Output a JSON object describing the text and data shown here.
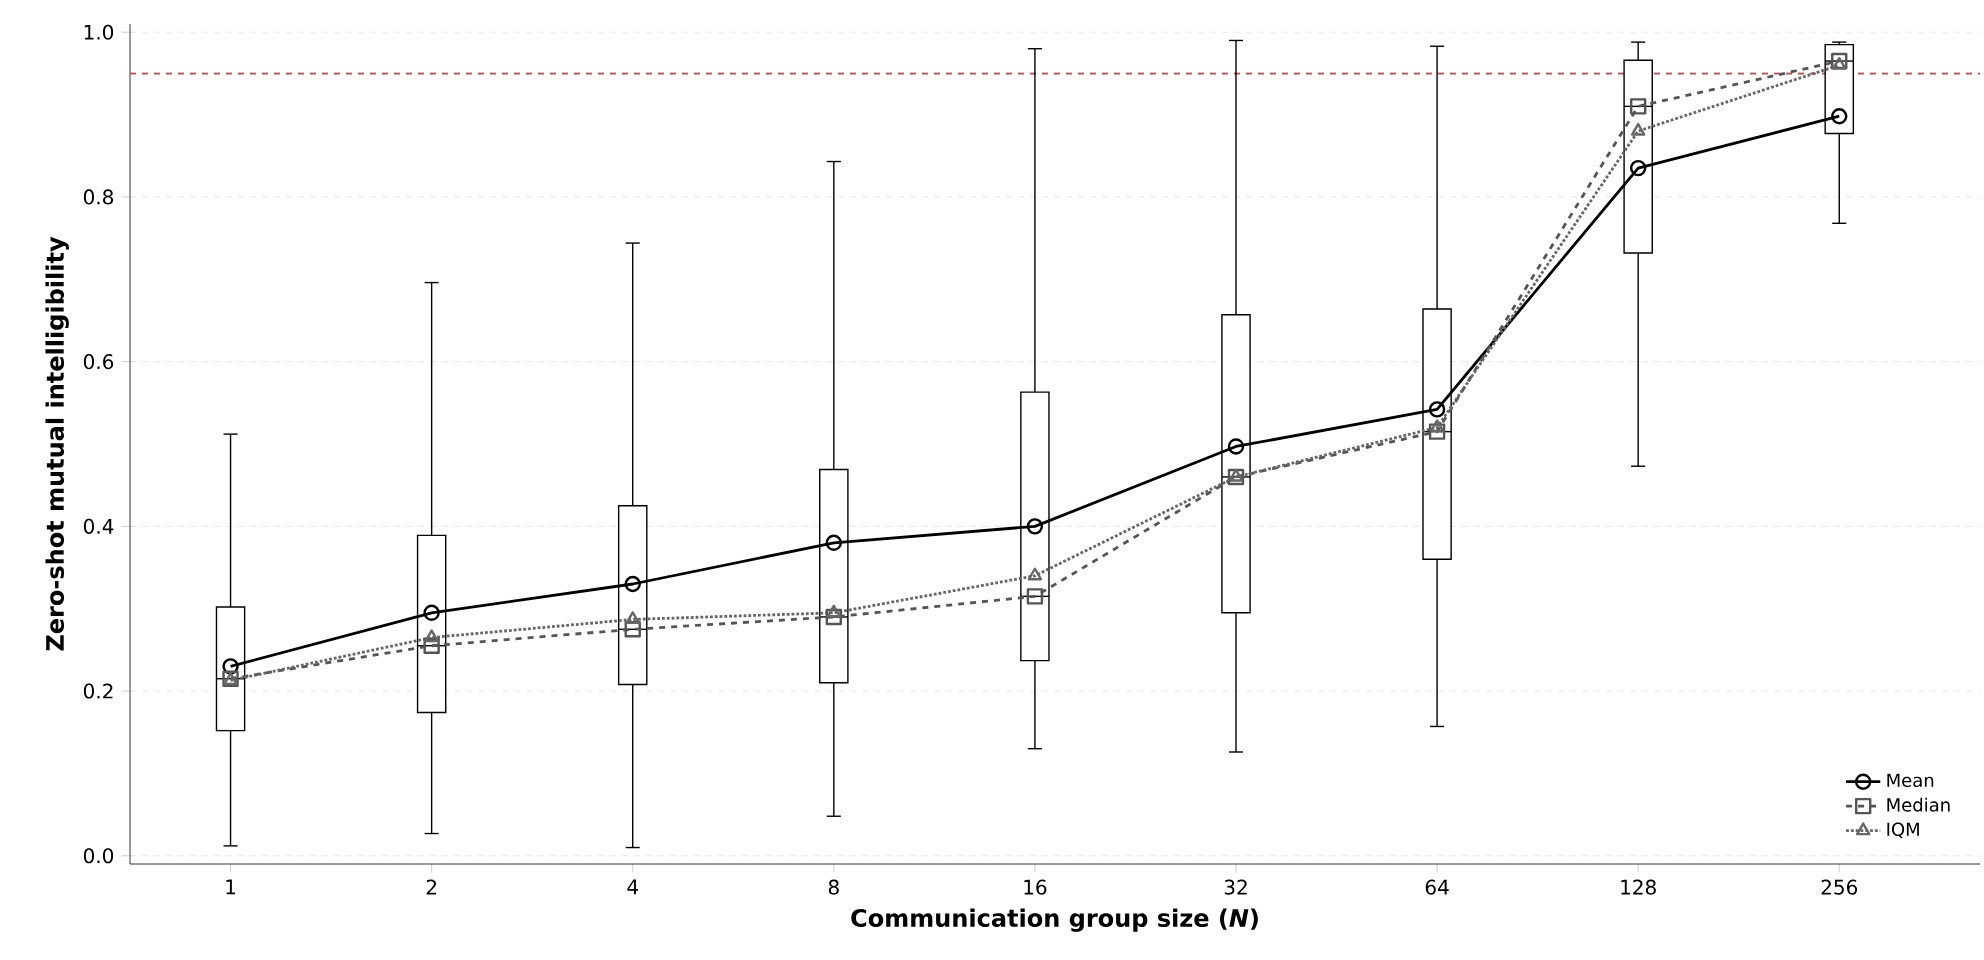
{
  "chart_data": {
    "type": "box",
    "xlabel": "Communication group size (*N*)",
    "ylabel": "Zero-shot mutual intelligibility",
    "categories": [
      "1",
      "2",
      "4",
      "8",
      "16",
      "32",
      "64",
      "128",
      "256"
    ],
    "boxes": [
      {
        "low": 0.012,
        "q1": 0.152,
        "median": 0.215,
        "q3": 0.302,
        "high": 0.512
      },
      {
        "low": 0.027,
        "q1": 0.174,
        "median": 0.255,
        "q3": 0.389,
        "high": 0.696
      },
      {
        "low": 0.01,
        "q1": 0.208,
        "median": 0.275,
        "q3": 0.425,
        "high": 0.744
      },
      {
        "low": 0.048,
        "q1": 0.21,
        "median": 0.29,
        "q3": 0.469,
        "high": 0.843
      },
      {
        "low": 0.13,
        "q1": 0.237,
        "median": 0.315,
        "q3": 0.563,
        "high": 0.98
      },
      {
        "low": 0.126,
        "q1": 0.295,
        "median": 0.46,
        "q3": 0.657,
        "high": 0.99
      },
      {
        "low": 0.157,
        "q1": 0.36,
        "median": 0.515,
        "q3": 0.664,
        "high": 0.983
      },
      {
        "low": 0.473,
        "q1": 0.732,
        "median": 0.91,
        "q3": 0.966,
        "high": 0.988
      },
      {
        "low": 0.768,
        "q1": 0.877,
        "median": 0.965,
        "q3": 0.985,
        "high": 0.988
      }
    ],
    "series": [
      {
        "name": "Mean",
        "type": "line",
        "color": "#000000",
        "marker": "circle",
        "line_style": "solid",
        "values": [
          0.23,
          0.295,
          0.33,
          0.38,
          0.4,
          0.497,
          0.542,
          0.835,
          0.898
        ]
      },
      {
        "name": "Median",
        "type": "line",
        "color": "#555555",
        "marker": "square",
        "line_style": "dashed",
        "values": [
          0.215,
          0.255,
          0.275,
          0.29,
          0.315,
          0.46,
          0.515,
          0.91,
          0.965
        ]
      },
      {
        "name": "IQM",
        "type": "line",
        "color": "#666666",
        "marker": "triangle",
        "line_style": "dotted",
        "values": [
          0.213,
          0.265,
          0.287,
          0.295,
          0.34,
          0.46,
          0.52,
          0.88,
          0.96
        ]
      }
    ],
    "ylim": [
      -0.01,
      1.01
    ],
    "yticks": [
      {
        "value": 0,
        "label": "0.0"
      },
      {
        "value": 0.2,
        "label": "0.2"
      },
      {
        "value": 0.4,
        "label": "0.4"
      },
      {
        "value": 0.6,
        "label": "0.6"
      },
      {
        "value": 0.8,
        "label": "0.8"
      },
      {
        "value": 1,
        "label": "1.0"
      }
    ],
    "ref_lines": [
      {
        "axis": "y",
        "value": 0.95,
        "color": "#c0504d",
        "line_style": "dashed"
      }
    ],
    "grid": "y",
    "legend": "bottom right"
  }
}
